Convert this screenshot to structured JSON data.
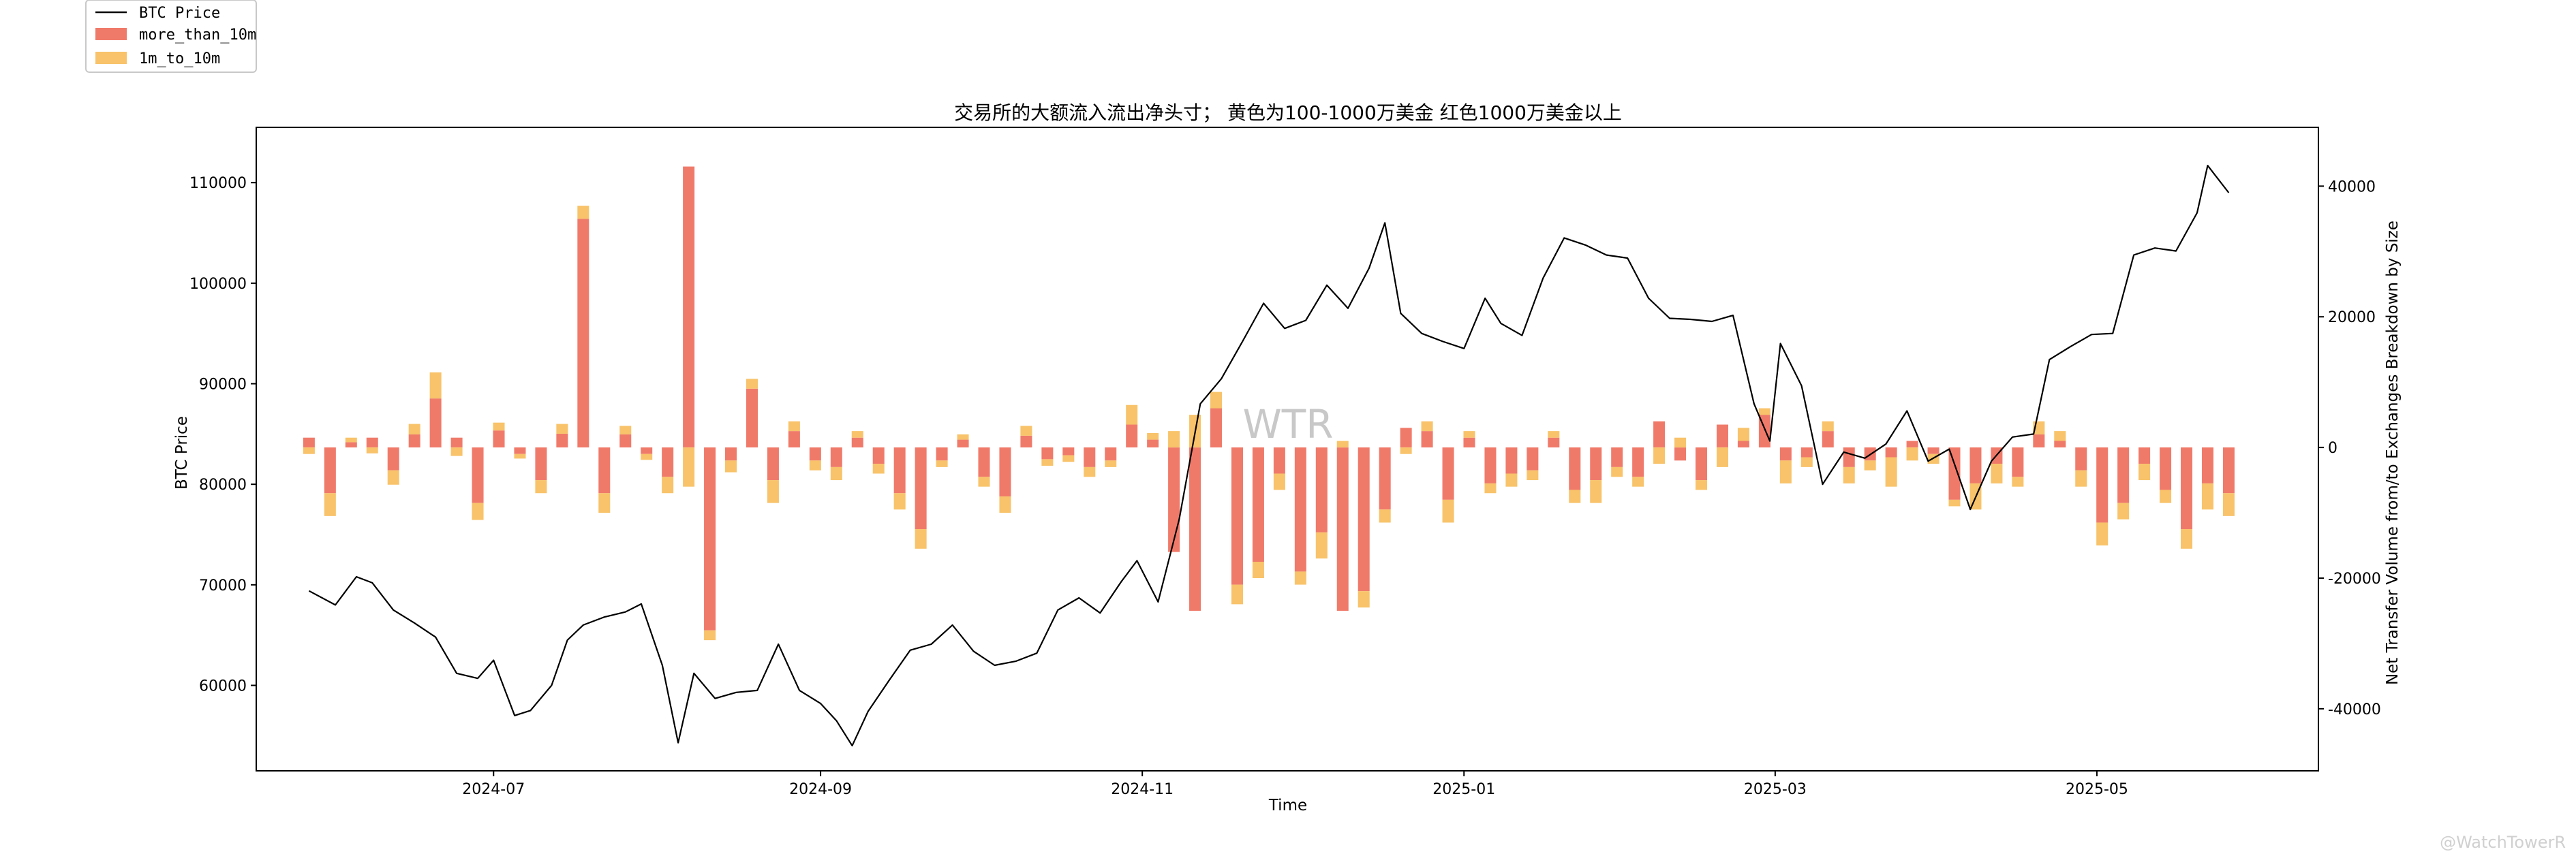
{
  "chart_data": {
    "type": "bar",
    "title": "交易所的大额流入流出净头寸； 黄色为100-1000万美金 红色1000万美金以上",
    "xlabel": "Time",
    "ylabel_left": "BTC Price",
    "ylabel_right": "Net Transfer Volume from/to Exchanges Breakdown by Size",
    "x_ticks": [
      "2024-07",
      "2024-09",
      "2024-11",
      "2025-01",
      "2025-03",
      "2025-05"
    ],
    "y_left_ticks": [
      60000,
      70000,
      80000,
      90000,
      100000,
      110000
    ],
    "y_left_lim": [
      51500,
      115500
    ],
    "y_right_ticks": [
      -40000,
      -20000,
      0,
      20000,
      40000
    ],
    "y_right_lim": [
      -49500,
      49000
    ],
    "x_range": [
      "2024-05-17",
      "2025-06-12"
    ],
    "legend_position": "top-left (outside plot)",
    "colors": {
      "price_line": "#000000",
      "more_than_10m": "#f07a6a",
      "1m_to_10m": "#f8c36a",
      "axes": "#000000"
    },
    "legend": [
      {
        "label": "BTC Price",
        "kind": "line",
        "color": "#000000"
      },
      {
        "label": "more_than_10m",
        "kind": "patch",
        "color": "#f07a6a"
      },
      {
        "label": "1m_to_10m",
        "kind": "patch",
        "color": "#f8c36a"
      }
    ],
    "watermark": "WTR",
    "credit": "@WatchTowerR",
    "price_series": {
      "name": "BTC Price",
      "dates": [
        "2024-05-27",
        "2024-06-01",
        "2024-06-05",
        "2024-06-08",
        "2024-06-12",
        "2024-06-16",
        "2024-06-20",
        "2024-06-24",
        "2024-06-28",
        "2024-07-01",
        "2024-07-05",
        "2024-07-08",
        "2024-07-12",
        "2024-07-15",
        "2024-07-18",
        "2024-07-22",
        "2024-07-26",
        "2024-07-29",
        "2024-08-02",
        "2024-08-05",
        "2024-08-08",
        "2024-08-12",
        "2024-08-16",
        "2024-08-20",
        "2024-08-24",
        "2024-08-28",
        "2024-09-01",
        "2024-09-04",
        "2024-09-07",
        "2024-09-10",
        "2024-09-14",
        "2024-09-18",
        "2024-09-22",
        "2024-09-26",
        "2024-09-30",
        "2024-10-04",
        "2024-10-08",
        "2024-10-12",
        "2024-10-16",
        "2024-10-20",
        "2024-10-24",
        "2024-10-28",
        "2024-10-31",
        "2024-11-04",
        "2024-11-08",
        "2024-11-12",
        "2024-11-16",
        "2024-11-20",
        "2024-11-24",
        "2024-11-28",
        "2024-12-02",
        "2024-12-06",
        "2024-12-10",
        "2024-12-14",
        "2024-12-17",
        "2024-12-20",
        "2024-12-24",
        "2024-12-28",
        "2025-01-01",
        "2025-01-05",
        "2025-01-08",
        "2025-01-12",
        "2025-01-16",
        "2025-01-20",
        "2025-01-24",
        "2025-01-28",
        "2025-02-01",
        "2025-02-05",
        "2025-02-09",
        "2025-02-13",
        "2025-02-17",
        "2025-02-21",
        "2025-02-25",
        "2025-02-28",
        "2025-03-02",
        "2025-03-06",
        "2025-03-10",
        "2025-03-14",
        "2025-03-18",
        "2025-03-22",
        "2025-03-26",
        "2025-03-30",
        "2025-04-03",
        "2025-04-07",
        "2025-04-11",
        "2025-04-15",
        "2025-04-19",
        "2025-04-22",
        "2025-04-26",
        "2025-04-30",
        "2025-05-04",
        "2025-05-08",
        "2025-05-12",
        "2025-05-16",
        "2025-05-20",
        "2025-05-22",
        "2025-05-26"
      ],
      "values": [
        69400,
        68000,
        70800,
        70200,
        67500,
        66200,
        64800,
        61200,
        60700,
        62500,
        57000,
        57500,
        60000,
        64500,
        66000,
        66800,
        67300,
        68100,
        62000,
        54300,
        61200,
        58700,
        59300,
        59500,
        64100,
        59500,
        58200,
        56500,
        54000,
        57400,
        60500,
        63500,
        64100,
        66000,
        63400,
        62000,
        62400,
        63200,
        67500,
        68700,
        67200,
        70300,
        72400,
        68300,
        76500,
        88000,
        90500,
        94200,
        98000,
        95500,
        96300,
        99800,
        97500,
        101500,
        106000,
        97000,
        95000,
        94200,
        93500,
        98500,
        96000,
        94800,
        100500,
        104500,
        103800,
        102800,
        102500,
        98500,
        96500,
        96400,
        96200,
        96800,
        88000,
        84300,
        94000,
        89800,
        80000,
        83200,
        82600,
        84000,
        87300,
        82300,
        83500,
        77500,
        82300,
        84700,
        85000,
        92400,
        93700,
        94900,
        95000,
        102800,
        103500,
        103200,
        107000,
        111700,
        109000
      ]
    },
    "bar_dates": [
      "2024-05-27",
      "2024-05-31",
      "2024-06-04",
      "2024-06-08",
      "2024-06-12",
      "2024-06-16",
      "2024-06-20",
      "2024-06-24",
      "2024-06-28",
      "2024-07-02",
      "2024-07-06",
      "2024-07-10",
      "2024-07-14",
      "2024-07-18",
      "2024-07-22",
      "2024-07-26",
      "2024-07-30",
      "2024-08-03",
      "2024-08-07",
      "2024-08-11",
      "2024-08-15",
      "2024-08-19",
      "2024-08-23",
      "2024-08-27",
      "2024-08-31",
      "2024-09-04",
      "2024-09-08",
      "2024-09-12",
      "2024-09-16",
      "2024-09-20",
      "2024-09-24",
      "2024-09-28",
      "2024-10-02",
      "2024-10-06",
      "2024-10-10",
      "2024-10-14",
      "2024-10-18",
      "2024-10-22",
      "2024-10-26",
      "2024-10-30",
      "2024-11-03",
      "2024-11-07",
      "2024-11-11",
      "2024-11-15",
      "2024-11-19",
      "2024-11-23",
      "2024-11-27",
      "2024-12-01",
      "2024-12-05",
      "2024-12-09",
      "2024-12-13",
      "2024-12-17",
      "2024-12-21",
      "2024-12-25",
      "2024-12-29",
      "2025-01-02",
      "2025-01-06",
      "2025-01-10",
      "2025-01-14",
      "2025-01-18",
      "2025-01-22",
      "2025-01-26",
      "2025-01-30",
      "2025-02-03",
      "2025-02-07",
      "2025-02-11",
      "2025-02-15",
      "2025-02-19",
      "2025-02-23",
      "2025-02-27",
      "2025-03-03",
      "2025-03-07",
      "2025-03-11",
      "2025-03-15",
      "2025-03-19",
      "2025-03-23",
      "2025-03-27",
      "2025-03-31",
      "2025-04-04",
      "2025-04-08",
      "2025-04-12",
      "2025-04-16",
      "2025-04-20",
      "2025-04-24",
      "2025-04-28",
      "2025-05-02",
      "2025-05-06",
      "2025-05-10",
      "2025-05-14",
      "2025-05-18",
      "2025-05-22",
      "2025-05-26"
    ],
    "series": [
      {
        "name": "more_than_10m",
        "values": [
          1500,
          -7000,
          800,
          1500,
          -3500,
          2000,
          7500,
          1500,
          -8500,
          2600,
          -1000,
          -5000,
          2100,
          35000,
          -7000,
          2000,
          -1000,
          -4500,
          43000,
          -28000,
          -2000,
          9000,
          -5000,
          2500,
          -2000,
          -3000,
          1500,
          -2500,
          -7000,
          -12500,
          -2000,
          1200,
          -4500,
          -7500,
          1800,
          -1800,
          -1200,
          -3000,
          -2000,
          3500,
          1200,
          -16000,
          -25000,
          6000,
          -21000,
          -17500,
          -4000,
          -19000,
          -13000,
          -25000,
          -22000,
          -9500,
          3000,
          2500,
          -8000,
          1500,
          -5500,
          -4000,
          -3500,
          1500,
          -6500,
          -5000,
          -3000,
          -4500,
          4000,
          -2000,
          -5000,
          3500,
          1000,
          5000,
          -2000,
          -1500,
          2500,
          -3000,
          -2000,
          -1500,
          1000,
          -1000,
          -8000,
          -5500,
          -2500,
          -4500,
          2000,
          1000,
          -3500,
          -11500,
          -8500,
          -2500,
          -6500,
          -12500,
          -5500,
          -7000
        ]
      },
      {
        "name": "1m_to_10m",
        "values": [
          -1000,
          -3500,
          700,
          -900,
          -2200,
          1600,
          4000,
          -1300,
          -2600,
          1200,
          -700,
          -2000,
          1500,
          2000,
          -3000,
          1300,
          -900,
          -2500,
          -6000,
          -1500,
          -1800,
          1500,
          -3500,
          1500,
          -1500,
          -2000,
          1000,
          -1500,
          -2500,
          -3000,
          -1000,
          800,
          -1500,
          -2500,
          1500,
          -1000,
          -1000,
          -1500,
          -1000,
          3000,
          1000,
          2500,
          5000,
          2500,
          -3000,
          -2500,
          -2500,
          -2000,
          -4000,
          1000,
          -2500,
          -2000,
          -1000,
          1500,
          -3500,
          1000,
          -1500,
          -2000,
          -1500,
          1000,
          -2000,
          -3500,
          -1500,
          -1500,
          -2500,
          1500,
          -1500,
          -3000,
          2000,
          1000,
          -3500,
          -1500,
          1500,
          -2500,
          -1500,
          -4500,
          -2000,
          -1500,
          -1000,
          -4000,
          -3000,
          -1500,
          2000,
          1500,
          -2500,
          -3500,
          -2500,
          -2500,
          -2000,
          -3000,
          -4000,
          -3500
        ]
      }
    ]
  }
}
